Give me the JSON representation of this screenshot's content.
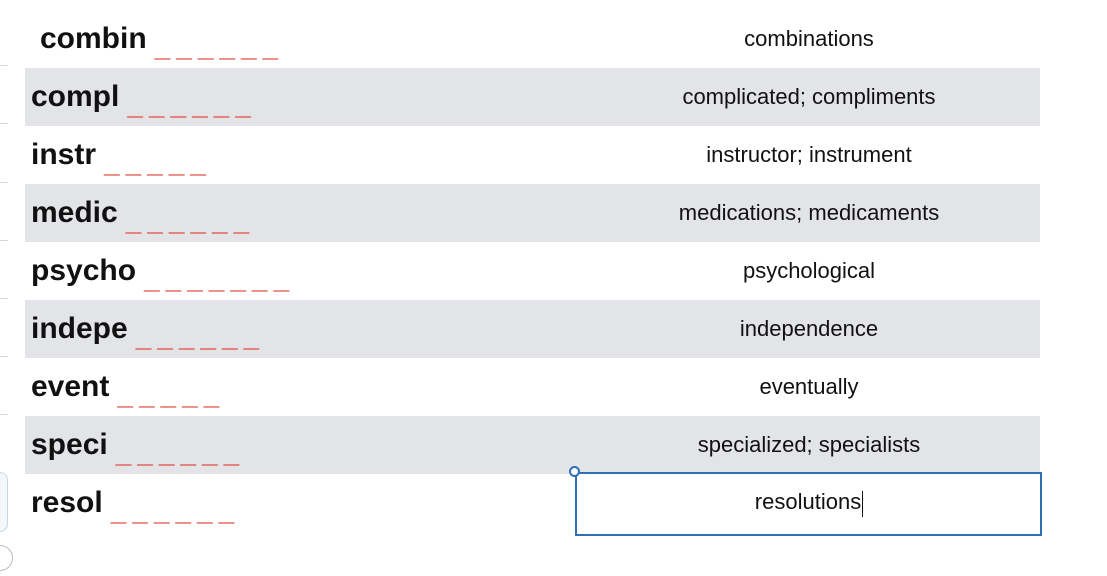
{
  "rows": [
    {
      "stem": "combin",
      "blanks": "______",
      "answer": "combinations"
    },
    {
      "stem": "compl",
      "blanks": "______",
      "answer": "complicated; compliments"
    },
    {
      "stem": "instr",
      "blanks": "_____",
      "answer": "instructor; instrument"
    },
    {
      "stem": "medic",
      "blanks": "______",
      "answer": "medications; medicaments"
    },
    {
      "stem": "psycho",
      "blanks": "_______",
      "answer": "psychological"
    },
    {
      "stem": "indepe",
      "blanks": "______",
      "answer": "independence"
    },
    {
      "stem": "event",
      "blanks": "_____",
      "answer": "eventually"
    },
    {
      "stem": "speci",
      "blanks": "______",
      "answer": "specialized; specialists"
    },
    {
      "stem": "resol",
      "blanks": "______",
      "answer": "resolutions"
    }
  ],
  "colors": {
    "blank": "#e0261a",
    "row_shade": "#e3e4e8",
    "selection": "#2f6fb6"
  }
}
